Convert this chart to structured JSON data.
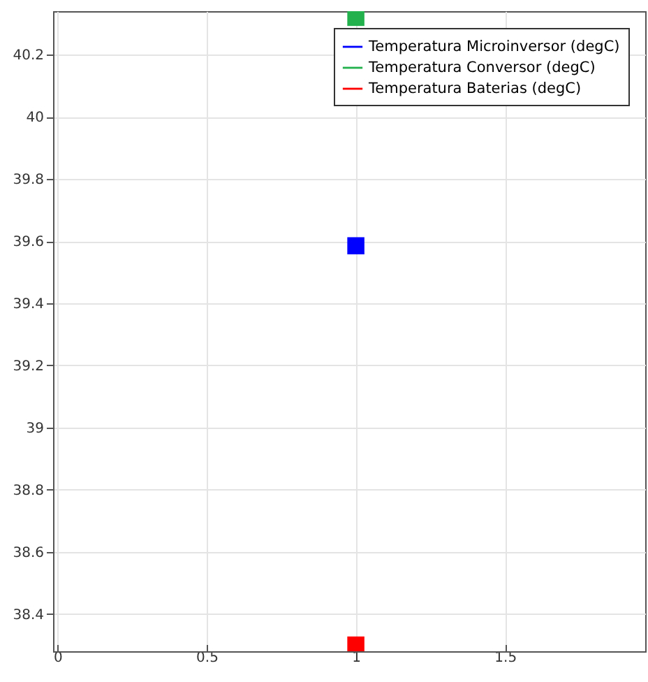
{
  "chart_data": {
    "type": "scatter",
    "x": [
      1
    ],
    "series": [
      {
        "name": "Temperatura Microinversor (degC)",
        "color": "#0000ff",
        "values": [
          39.585
        ]
      },
      {
        "name": "Temperatura Conversor (degC)",
        "color": "#22b14c",
        "values": [
          40.32
        ]
      },
      {
        "name": "Temperatura Baterias (degC)",
        "color": "#ff0000",
        "values": [
          38.3
        ]
      }
    ],
    "xlim": [
      -0.015,
      1.97
    ],
    "xticks": [
      0,
      0.5,
      1,
      1.5
    ],
    "ylim": [
      38.28,
      40.34
    ],
    "yticks": [
      38.4,
      38.6,
      38.8,
      39,
      39.2,
      39.4,
      39.6,
      39.8,
      40,
      40.2
    ],
    "grid": true,
    "legend": "top right",
    "marker": "square"
  }
}
